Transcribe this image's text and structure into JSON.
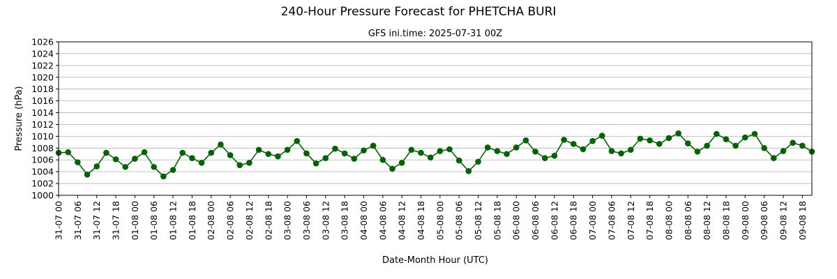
{
  "chart_data": {
    "type": "line",
    "title": "240-Hour Pressure Forecast for PHETCHA BURI",
    "subtitle": "GFS ini.time: 2025-07-31 00Z",
    "xlabel": "Date-Month Hour (UTC)",
    "ylabel": "Pressure (hPa)",
    "ylim": [
      1000,
      1026
    ],
    "yticks": [
      1000,
      1002,
      1004,
      1006,
      1008,
      1010,
      1012,
      1014,
      1016,
      1018,
      1020,
      1022,
      1024,
      1026
    ],
    "xticks": [
      "31-07 00",
      "31-07 06",
      "31-07 12",
      "31-07 18",
      "01-08 00",
      "01-08 06",
      "01-08 12",
      "01-08 18",
      "02-08 00",
      "02-08 06",
      "02-08 12",
      "02-08 18",
      "03-08 00",
      "03-08 06",
      "03-08 12",
      "03-08 18",
      "04-08 00",
      "04-08 06",
      "04-08 12",
      "04-08 18",
      "05-08 00",
      "05-08 06",
      "05-08 12",
      "05-08 18",
      "06-08 00",
      "06-08 06",
      "06-08 12",
      "06-08 18",
      "07-08 00",
      "07-08 06",
      "07-08 12",
      "07-08 18",
      "08-08 00",
      "08-08 06",
      "08-08 12",
      "08-08 18",
      "09-08 00",
      "09-08 06",
      "09-08 12",
      "09-08 18"
    ],
    "x_step_hours": 3,
    "grid": "horizontal",
    "color": "#006400",
    "series": [
      {
        "values": [
          1007.2,
          1007.3,
          1005.6,
          1003.5,
          1004.9,
          1007.2,
          1006.1,
          1004.8,
          1006.2,
          1007.3,
          1004.8,
          1003.2,
          1004.3,
          1007.2,
          1006.3,
          1005.5,
          1007.2,
          1008.6,
          1006.8,
          1005.1,
          1005.5,
          1007.7,
          1007.0,
          1006.6,
          1007.7,
          1009.2,
          1007.1,
          1005.4,
          1006.3,
          1007.9,
          1007.1,
          1006.2,
          1007.6,
          1008.4,
          1006.0,
          1004.5,
          1005.5,
          1007.7,
          1007.2,
          1006.4,
          1007.5,
          1007.8,
          1005.9,
          1004.1,
          1005.7,
          1008.1,
          1007.5,
          1007.0,
          1008.1,
          1009.3,
          1007.4,
          1006.3,
          1006.7,
          1009.4,
          1008.7,
          1007.8,
          1009.2,
          1010.1,
          1007.5,
          1007.1,
          1007.7,
          1009.6,
          1009.3,
          1008.7,
          1009.7,
          1010.5,
          1008.8,
          1007.4,
          1008.4,
          1010.4,
          1009.5,
          1008.4,
          1009.8,
          1010.4,
          1008.0,
          1006.3,
          1007.5,
          1008.9,
          1008.4,
          1007.4
        ]
      }
    ]
  }
}
